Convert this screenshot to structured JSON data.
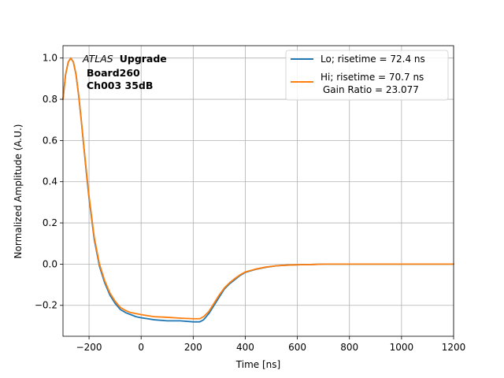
{
  "chart_data": {
    "type": "line",
    "xlabel": "Time [ns]",
    "ylabel": "Normalized Amplitude (A.U.)",
    "xlim": [
      -300,
      1200
    ],
    "ylim": [
      -0.35,
      1.06
    ],
    "grid": true,
    "x_ticks": [
      -200,
      0,
      200,
      400,
      600,
      800,
      1000,
      1200
    ],
    "x_tick_labels": [
      "−200",
      "0",
      "200",
      "400",
      "600",
      "800",
      "1000",
      "1200"
    ],
    "y_ticks": [
      -0.2,
      0.0,
      0.2,
      0.4,
      0.6,
      0.8,
      1.0
    ],
    "y_tick_labels": [
      "−0.2",
      "0.0",
      "0.2",
      "0.4",
      "0.6",
      "0.8",
      "1.0"
    ],
    "legend_position": "top-right",
    "annotation": {
      "atlas": "ATLAS",
      "upgrade": "Upgrade",
      "board": "Board260",
      "channel": "Ch003 35dB"
    },
    "series": [
      {
        "name": "Lo; risetime = 72.4 ns",
        "color": "#1f77b4",
        "x": [
          -300,
          -290,
          -280,
          -270,
          -260,
          -250,
          -240,
          -230,
          -220,
          -210,
          -200,
          -180,
          -160,
          -140,
          -120,
          -100,
          -80,
          -60,
          -40,
          -20,
          0,
          25,
          50,
          100,
          150,
          200,
          225,
          240,
          260,
          280,
          300,
          320,
          340,
          360,
          380,
          400,
          440,
          480,
          520,
          560,
          600,
          650,
          700,
          750,
          800,
          900,
          1000,
          1100,
          1200
        ],
        "y": [
          0.8,
          0.92,
          0.98,
          1.0,
          0.98,
          0.92,
          0.82,
          0.7,
          0.57,
          0.44,
          0.32,
          0.12,
          -0.01,
          -0.09,
          -0.15,
          -0.19,
          -0.22,
          -0.235,
          -0.245,
          -0.255,
          -0.26,
          -0.265,
          -0.27,
          -0.275,
          -0.275,
          -0.28,
          -0.28,
          -0.27,
          -0.24,
          -0.2,
          -0.16,
          -0.12,
          -0.095,
          -0.075,
          -0.055,
          -0.04,
          -0.025,
          -0.015,
          -0.008,
          -0.005,
          -0.003,
          -0.002,
          0.0,
          0.0,
          0.0,
          0.0,
          0.0,
          0.0,
          0.0
        ]
      },
      {
        "name": "Hi; risetime = 70.7 ns",
        "name_line2": "Gain Ratio = 23.077",
        "color": "#ff7f0e",
        "x": [
          -300,
          -290,
          -280,
          -270,
          -260,
          -250,
          -240,
          -230,
          -220,
          -210,
          -200,
          -180,
          -160,
          -140,
          -120,
          -100,
          -80,
          -60,
          -40,
          -20,
          0,
          25,
          50,
          100,
          150,
          200,
          225,
          240,
          260,
          280,
          300,
          320,
          340,
          360,
          380,
          400,
          440,
          480,
          520,
          560,
          600,
          650,
          700,
          750,
          800,
          900,
          1000,
          1100,
          1200
        ],
        "y": [
          0.8,
          0.92,
          0.98,
          1.0,
          0.98,
          0.92,
          0.82,
          0.7,
          0.57,
          0.45,
          0.33,
          0.13,
          0.0,
          -0.08,
          -0.14,
          -0.18,
          -0.21,
          -0.225,
          -0.235,
          -0.24,
          -0.245,
          -0.25,
          -0.255,
          -0.258,
          -0.262,
          -0.265,
          -0.265,
          -0.255,
          -0.23,
          -0.19,
          -0.15,
          -0.115,
          -0.09,
          -0.07,
          -0.052,
          -0.038,
          -0.024,
          -0.014,
          -0.008,
          -0.005,
          -0.003,
          -0.002,
          0.0,
          0.0,
          0.0,
          0.0,
          0.0,
          0.0,
          0.0
        ]
      }
    ]
  }
}
